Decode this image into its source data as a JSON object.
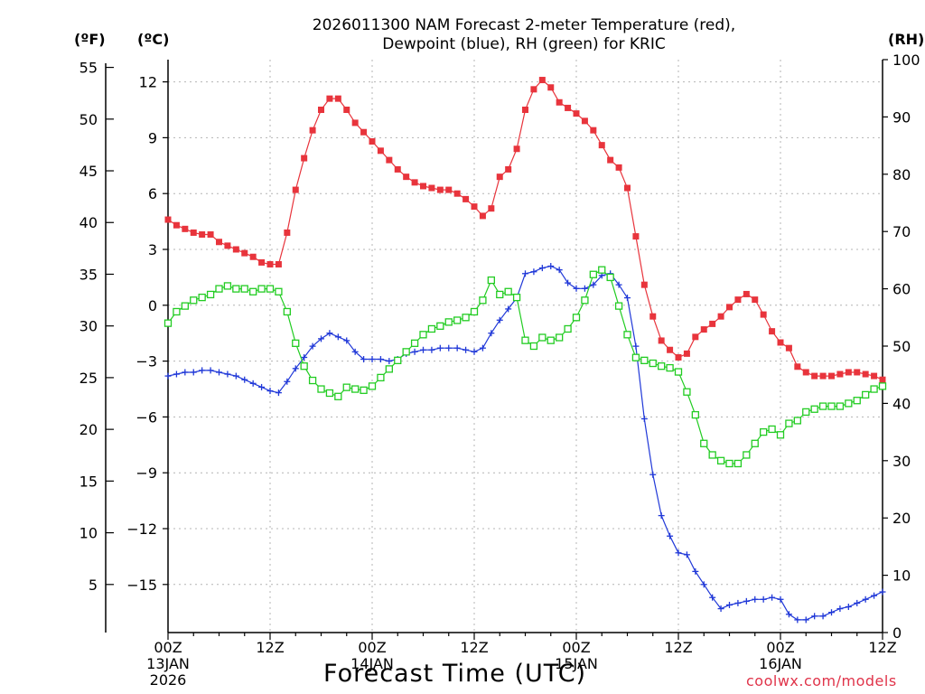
{
  "title": {
    "line1": "2026011300 NAM Forecast 2-meter Temperature (red),",
    "line2": "Dewpoint (blue), RH (green) for KRIC"
  },
  "units": {
    "fahrenheit": "(ºF)",
    "celsius": "(ºC)",
    "rh": "(RH)"
  },
  "xlabel": "Forecast Time (UTC)",
  "credit": "coolwx.com/models",
  "colors": {
    "temperature": "#e8343c",
    "dewpoint": "#2038d8",
    "rh": "#22cc22",
    "grid": "#b4b4b4"
  },
  "chart_data": {
    "type": "line",
    "title": "2026011300 NAM Forecast 2-meter Temperature (red), Dewpoint (blue), RH (green) for KRIC",
    "xlabel": "Forecast Time (UTC)",
    "x_unit": "forecast hour",
    "xlim": [
      0,
      84
    ],
    "x_ticks": [
      {
        "hour": 0,
        "label": "00Z",
        "sub": [
          "13JAN",
          "2026"
        ]
      },
      {
        "hour": 12,
        "label": "12Z",
        "sub": []
      },
      {
        "hour": 24,
        "label": "00Z",
        "sub": [
          "14JAN"
        ]
      },
      {
        "hour": 36,
        "label": "12Z",
        "sub": []
      },
      {
        "hour": 48,
        "label": "00Z",
        "sub": [
          "15JAN"
        ]
      },
      {
        "hour": 60,
        "label": "12Z",
        "sub": []
      },
      {
        "hour": 72,
        "label": "00Z",
        "sub": [
          "16JAN"
        ]
      },
      {
        "hour": 84,
        "label": "12Z",
        "sub": []
      }
    ],
    "y_celsius": {
      "ylim": [
        -17.5,
        13
      ],
      "ticks": [
        12,
        9,
        6,
        3,
        0,
        -3,
        -6,
        -9,
        -12,
        -15
      ]
    },
    "y_fahrenheit": {
      "ticks": [
        55,
        50,
        45,
        40,
        35,
        30,
        25,
        20,
        15,
        10,
        5
      ]
    },
    "y_rh": {
      "ylim": [
        0,
        100
      ],
      "ticks": [
        100,
        90,
        80,
        70,
        60,
        50,
        40,
        30,
        20,
        10,
        0
      ]
    },
    "grid": true,
    "series": [
      {
        "name": "Temperature",
        "unit": "C",
        "marker": "filled-square",
        "x": [
          0,
          1,
          2,
          3,
          4,
          5,
          6,
          7,
          8,
          9,
          10,
          11,
          12,
          13,
          14,
          15,
          16,
          17,
          18,
          19,
          20,
          21,
          22,
          23,
          24,
          25,
          26,
          27,
          28,
          29,
          30,
          31,
          32,
          33,
          34,
          35,
          36,
          37,
          38,
          39,
          40,
          41,
          42,
          43,
          44,
          45,
          46,
          47,
          48,
          49,
          50,
          51,
          52,
          53,
          54,
          55,
          56,
          57,
          58,
          59,
          60,
          61,
          62,
          63,
          64,
          65,
          66,
          67,
          68,
          69,
          70,
          71,
          72,
          73,
          74,
          75,
          76,
          77,
          78,
          79,
          80,
          81,
          82,
          83,
          84
        ],
        "values": [
          4.6,
          4.3,
          4.1,
          3.9,
          3.8,
          3.8,
          3.4,
          3.2,
          3.0,
          2.8,
          2.6,
          2.3,
          2.2,
          2.2,
          3.9,
          6.2,
          7.9,
          9.4,
          10.5,
          11.1,
          11.1,
          10.5,
          9.8,
          9.3,
          8.8,
          8.3,
          7.8,
          7.3,
          6.9,
          6.6,
          6.4,
          6.3,
          6.2,
          6.2,
          6.0,
          5.7,
          5.3,
          4.8,
          5.2,
          6.9,
          7.3,
          8.4,
          10.5,
          11.6,
          12.1,
          11.7,
          10.9,
          10.6,
          10.3,
          9.9,
          9.4,
          8.6,
          7.8,
          7.4,
          6.3,
          3.7,
          1.1,
          -0.6,
          -1.9,
          -2.4,
          -2.8,
          -2.6,
          -1.7,
          -1.3,
          -1.0,
          -0.6,
          -0.1,
          0.3,
          0.6,
          0.3,
          -0.5,
          -1.4,
          -2.0,
          -2.3,
          -3.3,
          -3.6,
          -3.8,
          -3.8,
          -3.8,
          -3.7,
          -3.6,
          -3.6,
          -3.7,
          -3.8,
          -4.0
        ]
      },
      {
        "name": "Dewpoint",
        "unit": "C",
        "marker": "plus",
        "x": [
          0,
          1,
          2,
          3,
          4,
          5,
          6,
          7,
          8,
          9,
          10,
          11,
          12,
          13,
          14,
          15,
          16,
          17,
          18,
          19,
          20,
          21,
          22,
          23,
          24,
          25,
          26,
          27,
          28,
          29,
          30,
          31,
          32,
          33,
          34,
          35,
          36,
          37,
          38,
          39,
          40,
          41,
          42,
          43,
          44,
          45,
          46,
          47,
          48,
          49,
          50,
          51,
          52,
          53,
          54,
          55,
          56,
          57,
          58,
          59,
          60,
          61,
          62,
          63,
          64,
          65,
          66,
          67,
          68,
          69,
          70,
          71,
          72,
          73,
          74,
          75,
          76,
          77,
          78,
          79,
          80,
          81,
          82,
          83,
          84
        ],
        "values": [
          -3.8,
          -3.7,
          -3.6,
          -3.6,
          -3.5,
          -3.5,
          -3.6,
          -3.7,
          -3.8,
          -4.0,
          -4.2,
          -4.4,
          -4.6,
          -4.7,
          -4.1,
          -3.4,
          -2.8,
          -2.2,
          -1.8,
          -1.5,
          -1.7,
          -1.9,
          -2.5,
          -2.9,
          -2.9,
          -2.9,
          -3.0,
          -2.9,
          -2.6,
          -2.5,
          -2.4,
          -2.4,
          -2.3,
          -2.3,
          -2.3,
          -2.4,
          -2.5,
          -2.3,
          -1.5,
          -0.8,
          -0.2,
          0.4,
          1.7,
          1.8,
          2.0,
          2.1,
          1.9,
          1.2,
          0.9,
          0.9,
          1.1,
          1.6,
          1.7,
          1.1,
          0.4,
          -2.2,
          -6.1,
          -9.1,
          -11.3,
          -12.4,
          -13.3,
          -13.4,
          -14.3,
          -15.0,
          -15.7,
          -16.3,
          -16.1,
          -16.0,
          -15.9,
          -15.8,
          -15.8,
          -15.7,
          -15.8,
          -16.6,
          -16.9,
          -16.9,
          -16.7,
          -16.7,
          -16.5,
          -16.3,
          -16.2,
          -16.0,
          -15.8,
          -15.6,
          -15.4
        ]
      },
      {
        "name": "RH",
        "unit": "%",
        "marker": "open-square",
        "x": [
          0,
          1,
          2,
          3,
          4,
          5,
          6,
          7,
          8,
          9,
          10,
          11,
          12,
          13,
          14,
          15,
          16,
          17,
          18,
          19,
          20,
          21,
          22,
          23,
          24,
          25,
          26,
          27,
          28,
          29,
          30,
          31,
          32,
          33,
          34,
          35,
          36,
          37,
          38,
          39,
          40,
          41,
          42,
          43,
          44,
          45,
          46,
          47,
          48,
          49,
          50,
          51,
          52,
          53,
          54,
          55,
          56,
          57,
          58,
          59,
          60,
          61,
          62,
          63,
          64,
          65,
          66,
          67,
          68,
          69,
          70,
          71,
          72,
          73,
          74,
          75,
          76,
          77,
          78,
          79,
          80,
          81,
          82,
          83,
          84
        ],
        "values": [
          54,
          56,
          57,
          58,
          58.5,
          59,
          60,
          60.5,
          60,
          60,
          59.5,
          60,
          60,
          59.5,
          56,
          50.5,
          46.5,
          44,
          42.5,
          41.8,
          41.2,
          42.8,
          42.5,
          42.3,
          43,
          44.5,
          46,
          47.5,
          49,
          50.5,
          52,
          53,
          53.5,
          54.2,
          54.5,
          55,
          56,
          58,
          61.5,
          59,
          59.5,
          58.5,
          51,
          50,
          51.5,
          51,
          51.5,
          53,
          55,
          58,
          62.5,
          63.3,
          62,
          57,
          52,
          48,
          47.5,
          47,
          46.5,
          46.2,
          45.5,
          42,
          38,
          33,
          31,
          30,
          29.5,
          29.5,
          31,
          33,
          35,
          35.5,
          34.5,
          36.5,
          37,
          38.5,
          39,
          39.5,
          39.5,
          39.5,
          40,
          40.5,
          41.5,
          42.5,
          43
        ]
      }
    ]
  }
}
